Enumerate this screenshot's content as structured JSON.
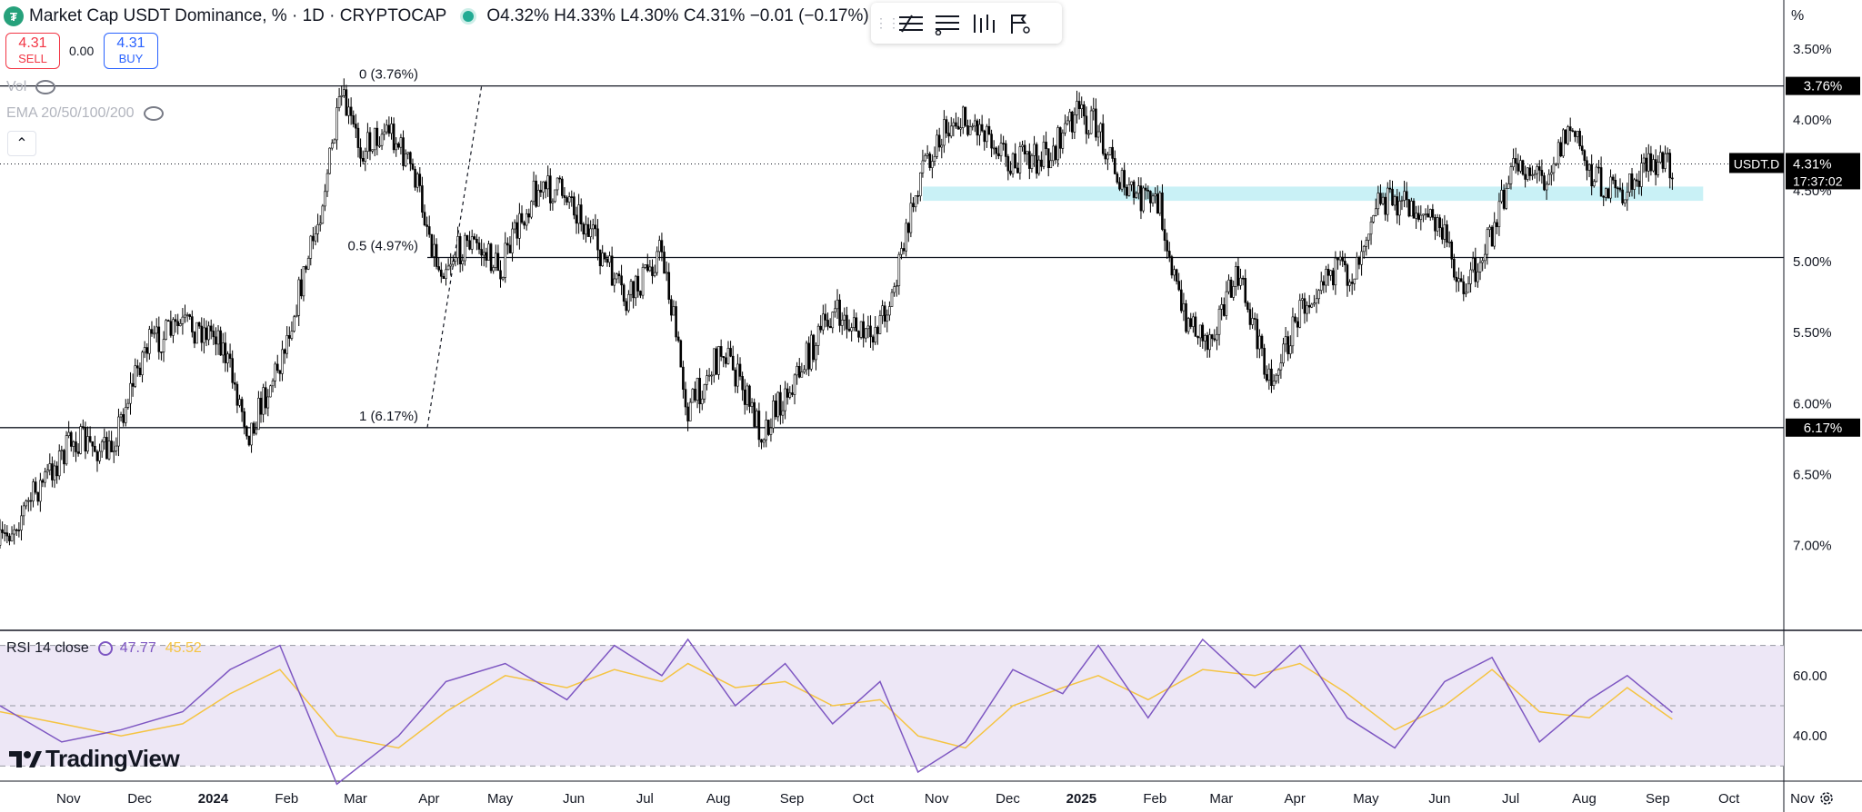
{
  "header": {
    "title": "Market Cap USDT Dominance, % · 1D · CRYPTOCAP",
    "ohlc": "O4.32% H4.33% L4.30% C4.31% −0.01 (−0.17%)"
  },
  "trade": {
    "sell_price": "4.31",
    "sell_label": "SELL",
    "spread": "0.00",
    "buy_price": "4.31",
    "buy_label": "BUY"
  },
  "indicators": {
    "vol_label": "Vol",
    "ema_label": "EMA 20/50/100/200",
    "rsi_label": "RSI 14 close",
    "rsi_value": "47.77",
    "rsi_ma_value": "45.52"
  },
  "toolbar": {
    "icons": [
      "drag-handle-icon",
      "fib-retracement-icon",
      "lines-icon",
      "bars-icon",
      "flags-icon"
    ]
  },
  "branding": {
    "logo_text": "TradingView"
  },
  "colors": {
    "candle": "#000000",
    "zone": "#b2ebf2",
    "rsi_line": "#7e57c2",
    "rsi_ma": "#f5c442",
    "rsi_band": "#ede7f6",
    "label_bg": "#000000"
  },
  "chart_data": [
    {
      "type": "candlestick",
      "title": "Market Cap USDT Dominance, % · 1D · CRYPTOCAP",
      "symbol": "USDT.D",
      "ylabel": "%",
      "y_axis_inverted": true,
      "ylim": [
        3.25,
        7.6
      ],
      "y_ticks": [
        "3.50%",
        "4.00%",
        "4.50%",
        "5.00%",
        "5.50%",
        "6.00%",
        "6.50%",
        "7.00%"
      ],
      "x_ticks": [
        "Nov",
        "Dec",
        "2024",
        "Feb",
        "Mar",
        "Apr",
        "May",
        "Jun",
        "Jul",
        "Aug",
        "Sep",
        "Oct",
        "Nov",
        "Dec",
        "2025",
        "Feb",
        "Mar",
        "Apr",
        "May",
        "Jun",
        "Jul",
        "Aug",
        "Sep",
        "Oct",
        "Nov"
      ],
      "x_range": [
        "2023-10-20",
        "2025-11-10"
      ],
      "series": [
        {
          "date": "2023-10-20",
          "close": 7.0
        },
        {
          "date": "2023-11-05",
          "close": 6.6
        },
        {
          "date": "2023-11-20",
          "close": 6.25
        },
        {
          "date": "2023-12-05",
          "close": 6.35
        },
        {
          "date": "2023-12-20",
          "close": 5.6
        },
        {
          "date": "2024-01-05",
          "close": 5.45
        },
        {
          "date": "2024-01-20",
          "close": 5.5
        },
        {
          "date": "2024-02-02",
          "close": 6.2
        },
        {
          "date": "2024-02-15",
          "close": 5.7
        },
        {
          "date": "2024-03-01",
          "close": 4.8
        },
        {
          "date": "2024-03-12",
          "close": 3.85
        },
        {
          "date": "2024-03-20",
          "close": 4.2
        },
        {
          "date": "2024-04-01",
          "close": 4.05
        },
        {
          "date": "2024-04-12",
          "close": 4.4
        },
        {
          "date": "2024-04-22",
          "close": 5.05
        },
        {
          "date": "2024-05-05",
          "close": 4.85
        },
        {
          "date": "2024-05-18",
          "close": 5.05
        },
        {
          "date": "2024-06-01",
          "close": 4.5
        },
        {
          "date": "2024-06-15",
          "close": 4.5
        },
        {
          "date": "2024-07-01",
          "close": 5.0
        },
        {
          "date": "2024-07-10",
          "close": 5.3
        },
        {
          "date": "2024-07-25",
          "close": 4.9
        },
        {
          "date": "2024-08-05",
          "close": 6.05
        },
        {
          "date": "2024-08-20",
          "close": 5.6
        },
        {
          "date": "2024-09-05",
          "close": 6.2
        },
        {
          "date": "2024-09-20",
          "close": 5.8
        },
        {
          "date": "2024-10-05",
          "close": 5.35
        },
        {
          "date": "2024-10-20",
          "close": 5.55
        },
        {
          "date": "2024-10-30",
          "close": 5.25
        },
        {
          "date": "2024-11-12",
          "close": 4.3
        },
        {
          "date": "2024-11-25",
          "close": 4.0
        },
        {
          "date": "2024-12-08",
          "close": 4.05
        },
        {
          "date": "2024-12-20",
          "close": 4.3
        },
        {
          "date": "2025-01-05",
          "close": 4.25
        },
        {
          "date": "2025-01-15",
          "close": 3.95
        },
        {
          "date": "2025-01-25",
          "close": 4.05
        },
        {
          "date": "2025-02-05",
          "close": 4.5
        },
        {
          "date": "2025-02-20",
          "close": 4.6
        },
        {
          "date": "2025-03-01",
          "close": 5.35
        },
        {
          "date": "2025-03-12",
          "close": 5.55
        },
        {
          "date": "2025-03-25",
          "close": 5.1
        },
        {
          "date": "2025-04-08",
          "close": 5.85
        },
        {
          "date": "2025-04-20",
          "close": 5.35
        },
        {
          "date": "2025-05-01",
          "close": 5.05
        },
        {
          "date": "2025-05-12",
          "close": 5.1
        },
        {
          "date": "2025-05-22",
          "close": 4.55
        },
        {
          "date": "2025-06-05",
          "close": 4.6
        },
        {
          "date": "2025-06-18",
          "close": 4.75
        },
        {
          "date": "2025-06-28",
          "close": 5.2
        },
        {
          "date": "2025-07-10",
          "close": 4.8
        },
        {
          "date": "2025-07-20",
          "close": 4.3
        },
        {
          "date": "2025-08-01",
          "close": 4.4
        },
        {
          "date": "2025-08-12",
          "close": 4.05
        },
        {
          "date": "2025-08-22",
          "close": 4.4
        },
        {
          "date": "2025-09-02",
          "close": 4.55
        },
        {
          "date": "2025-09-12",
          "close": 4.35
        },
        {
          "date": "2025-09-20",
          "close": 4.3
        },
        {
          "date": "2025-09-24",
          "close": 4.31
        }
      ],
      "last_value": "4.31%",
      "last_label_symbol": "USDT.D",
      "countdown": "17:37:02",
      "fibonacci": [
        {
          "label": "0 (3.76%)",
          "level": 3.76,
          "axis_label": "3.76%"
        },
        {
          "label": "0.5 (4.97%)",
          "level": 4.97
        },
        {
          "label": "1 (6.17%)",
          "level": 6.17,
          "axis_label": "6.17%"
        }
      ],
      "zone": {
        "from_date": "2024-11-12",
        "to_date": "2025-10-07",
        "y_from": 4.47,
        "y_to": 4.57
      }
    },
    {
      "type": "line",
      "title": "RSI 14 close",
      "series_values": [
        "47.77",
        "45.52"
      ],
      "ylim": [
        25,
        75
      ],
      "y_ticks": [
        "40.00",
        "60.00"
      ],
      "bands": [
        30,
        50,
        70
      ],
      "series": [
        {
          "x": [
            "2023-10-20",
            "2023-11-15",
            "2023-12-10",
            "2024-01-05",
            "2024-01-25",
            "2024-02-15",
            "2024-03-10",
            "2024-04-05",
            "2024-04-25",
            "2024-05-20",
            "2024-06-15",
            "2024-07-05",
            "2024-07-25",
            "2024-08-05",
            "2024-08-25",
            "2024-09-15",
            "2024-10-05",
            "2024-10-25",
            "2024-11-10",
            "2024-11-30",
            "2024-12-20",
            "2025-01-10",
            "2025-01-25",
            "2025-02-15",
            "2025-03-10",
            "2025-04-01",
            "2025-04-20",
            "2025-05-10",
            "2025-05-30",
            "2025-06-20",
            "2025-07-10",
            "2025-07-30",
            "2025-08-20",
            "2025-09-05",
            "2025-09-24"
          ],
          "rsi": [
            50,
            38,
            42,
            48,
            62,
            70,
            24,
            40,
            58,
            64,
            52,
            70,
            60,
            72,
            50,
            64,
            44,
            58,
            28,
            38,
            62,
            54,
            70,
            46,
            72,
            56,
            70,
            46,
            36,
            58,
            66,
            38,
            52,
            60,
            47.77
          ],
          "ma": [
            48,
            44,
            40,
            44,
            54,
            62,
            40,
            36,
            48,
            60,
            56,
            62,
            58,
            64,
            56,
            58,
            50,
            52,
            40,
            36,
            50,
            56,
            60,
            52,
            62,
            60,
            64,
            54,
            42,
            50,
            62,
            48,
            46,
            56,
            45.52
          ]
        }
      ]
    }
  ]
}
